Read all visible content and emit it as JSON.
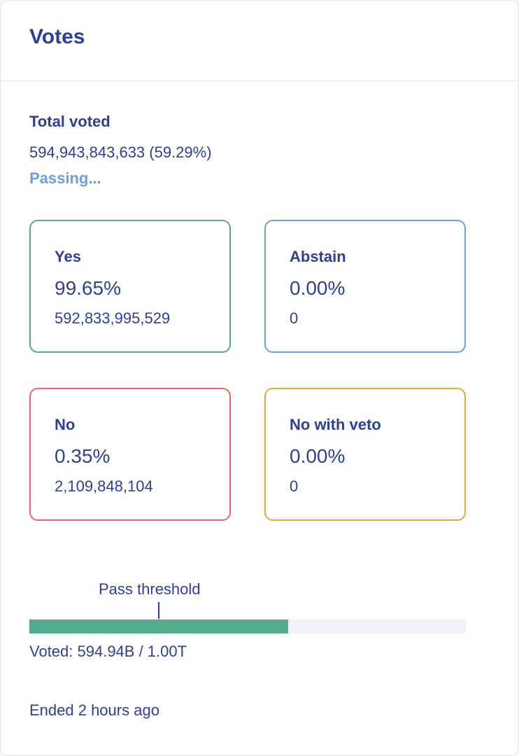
{
  "header": {
    "title": "Votes"
  },
  "summary": {
    "total_label": "Total voted",
    "total_value": "594,943,843,633 (59.29%)",
    "status": "Passing..."
  },
  "votes": {
    "yes": {
      "label": "Yes",
      "percent": "99.65%",
      "amount": "592,833,995,529"
    },
    "abstain": {
      "label": "Abstain",
      "percent": "0.00%",
      "amount": "0"
    },
    "no": {
      "label": "No",
      "percent": "0.35%",
      "amount": "2,109,848,104"
    },
    "veto": {
      "label": "No with veto",
      "percent": "0.00%",
      "amount": "0"
    }
  },
  "progress": {
    "threshold_label": "Pass threshold",
    "voted_text": "Voted: 594.94B / 1.00T",
    "voted_fraction": 0.5929,
    "yes_fraction_of_voted": 0.9965,
    "threshold_fraction": 0.3
  },
  "footer": {
    "ended_text": "Ended 2 hours ago"
  },
  "colors": {
    "primary_text": "#2c3f9c",
    "yes": "#55a98c",
    "abstain": "#6aa0e0",
    "no": "#df6b6b",
    "veto": "#e7a73c",
    "status": "#6aa0e0"
  }
}
